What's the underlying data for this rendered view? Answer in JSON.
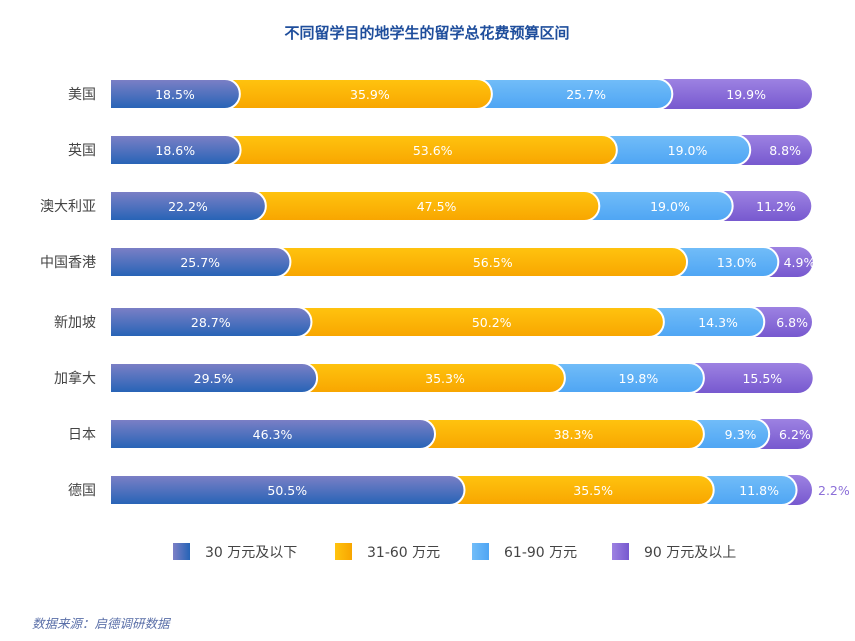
{
  "chart_data": {
    "type": "bar",
    "orientation": "horizontal",
    "stacked": true,
    "title": "不同留学目的地学生的留学总花费预算区间",
    "categories": [
      "美国",
      "英国",
      "澳大利亚",
      "中国香港",
      "新加坡",
      "加拿大",
      "日本",
      "德国"
    ],
    "series": [
      {
        "name": "30 万元及以下",
        "values": [
          18.5,
          18.6,
          22.2,
          25.7,
          28.7,
          29.5,
          46.3,
          50.5
        ],
        "colors": [
          "#7d80c6",
          "#2563b6"
        ]
      },
      {
        "name": "31-60 万元",
        "values": [
          35.9,
          53.6,
          47.5,
          56.5,
          50.2,
          35.3,
          38.3,
          35.5
        ],
        "colors": [
          "#ffc40f",
          "#f8a500"
        ]
      },
      {
        "name": "61-90 万元",
        "values": [
          25.7,
          19.0,
          19.0,
          13.0,
          14.3,
          19.8,
          9.3,
          11.8
        ],
        "colors": [
          "#72bdf8",
          "#4ea5f4"
        ]
      },
      {
        "name": "90 万元及以上",
        "values": [
          19.9,
          8.8,
          11.2,
          4.9,
          6.8,
          15.5,
          6.2,
          2.2
        ],
        "colors": [
          "#9d82e2",
          "#7759cf"
        ]
      }
    ],
    "value_suffix": "%",
    "xlim": [
      0,
      100
    ],
    "legend": "bottom",
    "grid": false,
    "source": "数据来源：启德调研数据"
  }
}
